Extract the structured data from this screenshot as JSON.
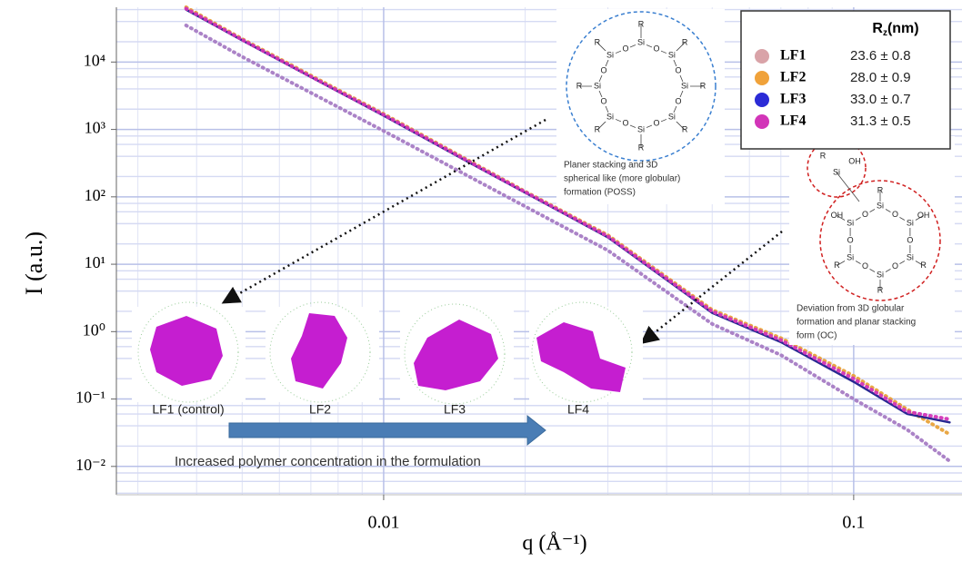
{
  "chart_data": {
    "type": "line",
    "xscale": "log",
    "yscale": "log",
    "grid": true,
    "xlabel": "q  (Å⁻¹)",
    "ylabel": "I (a.u.)",
    "xlim": [
      0.0027,
      0.17
    ],
    "ylim": [
      0.0038,
      65000
    ],
    "xticks": [
      0.01,
      0.1
    ],
    "xminorticks": [
      0.003,
      0.004,
      0.005,
      0.006,
      0.007,
      0.008,
      0.009,
      0.02,
      0.03,
      0.04,
      0.05,
      0.06,
      0.07,
      0.08,
      0.09
    ],
    "yticks": [
      {
        "value": 0.01,
        "label": "10⁻²"
      },
      {
        "value": 0.1,
        "label": "10⁻¹"
      },
      {
        "value": 1,
        "label": "10⁰"
      },
      {
        "value": 10,
        "label": "10¹"
      },
      {
        "value": 100,
        "label": "10²"
      },
      {
        "value": 1000,
        "label": "10³"
      },
      {
        "value": 10000,
        "label": "10⁴"
      }
    ],
    "yminorticks": [
      0.004,
      0.006,
      0.008,
      0.02,
      0.04,
      0.06,
      0.08,
      0.2,
      0.4,
      0.6,
      0.8,
      2,
      4,
      6,
      8,
      20,
      40,
      60,
      80,
      200,
      400,
      600,
      800,
      2000,
      4000,
      6000,
      8000,
      20000,
      40000,
      60000
    ],
    "x": [
      0.0038,
      0.005,
      0.007,
      0.01,
      0.015,
      0.02,
      0.03,
      0.05,
      0.07,
      0.1,
      0.13,
      0.16
    ],
    "legend_title": {
      "symbol": "R",
      "subscript": "z",
      "unit": "(nm)"
    },
    "series": [
      {
        "name": "LF1",
        "color": "#a77cc4",
        "legend_color": "#d9a3a8",
        "rz": "23.6 ± 0.8",
        "values": [
          35000,
          12000,
          3500,
          950,
          210,
          72,
          16,
          1.3,
          0.45,
          0.1,
          0.035,
          0.012
        ]
      },
      {
        "name": "LF2",
        "color": "#e8a23a",
        "legend_color": "#f0a23a",
        "rz": "28.0 ± 0.9",
        "values": [
          65000,
          22000,
          6300,
          1700,
          360,
          120,
          27,
          2.1,
          0.8,
          0.22,
          0.07,
          0.03
        ]
      },
      {
        "name": "LF3",
        "color": "#1c1c8c",
        "legend_color": "#2b2bd6",
        "rz": "33.0 ± 0.7",
        "values": [
          60000,
          21000,
          6000,
          1600,
          340,
          115,
          25,
          1.9,
          0.7,
          0.18,
          0.06,
          0.045
        ]
      },
      {
        "name": "LF4",
        "color": "#d235b8",
        "legend_color": "#d235b8",
        "rz": "31.3 ± 0.5",
        "values": [
          62000,
          21500,
          6100,
          1650,
          350,
          118,
          26,
          2.0,
          0.75,
          0.2,
          0.065,
          0.05
        ]
      }
    ],
    "particle_labels": [
      "LF1 (control)",
      "LF2",
      "LF3",
      "LF4"
    ],
    "arrow_text": "Increased polymer concentration in the formulation",
    "poss": {
      "caption": [
        "Planer stacking and 3D",
        "spherical like (more globular)",
        "formation (POSS)"
      ],
      "si": [
        "Si",
        "Si",
        "Si",
        "Si",
        "Si",
        "Si",
        "Si",
        "Si"
      ],
      "o": [
        "O",
        "O",
        "O",
        "O",
        "O",
        "O",
        "O",
        "O"
      ],
      "r": [
        "R",
        "R",
        "R",
        "R",
        "R",
        "R",
        "R",
        "R"
      ]
    },
    "oc": {
      "caption": [
        "Deviation from 3D globular",
        "formation and planar stacking",
        "form  (OC)"
      ],
      "si": [
        "Si",
        "Si",
        "Si",
        "Si",
        "Si",
        "Si"
      ],
      "o": [
        "O",
        "O",
        "O",
        "O",
        "O",
        "O"
      ],
      "r": [
        "R",
        "OH",
        "R",
        "R",
        "R",
        "OH"
      ],
      "top": [
        "R",
        "Si",
        "OH"
      ]
    }
  }
}
